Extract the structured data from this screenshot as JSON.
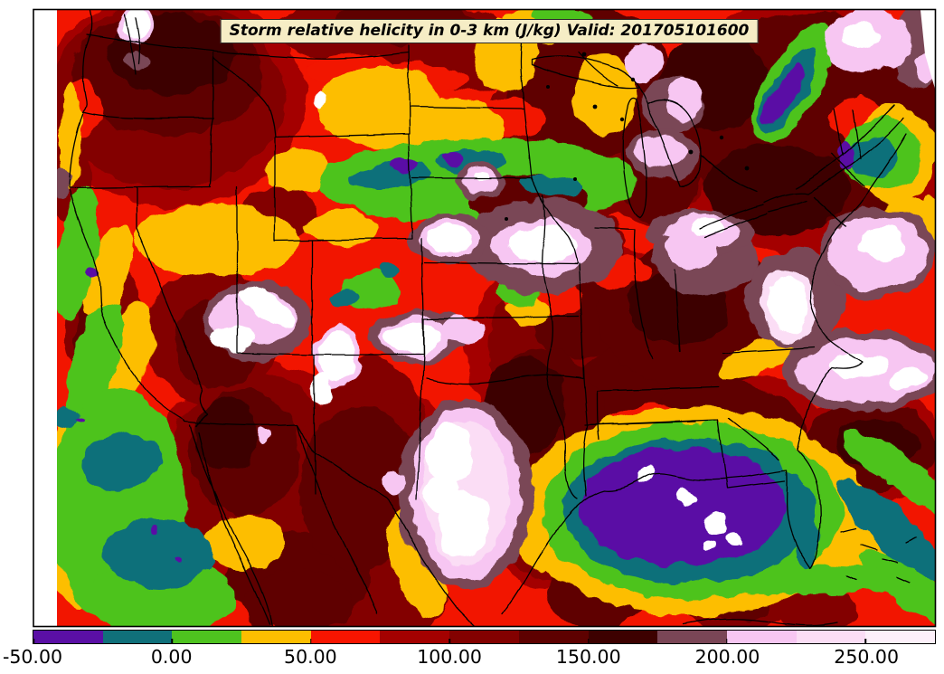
{
  "figure": {
    "title": "Storm relative helicity in 0-3 km (J/kg) Valid: 201705101600",
    "field_name": "Storm relative helicity in 0-3 km",
    "units": "J/kg",
    "valid_time": "201705101600"
  },
  "colorbar": {
    "range_min": -50,
    "range_max": 275,
    "bin_width": 25,
    "ticks": [
      {
        "value": -50,
        "label": "-50.00"
      },
      {
        "value": 0,
        "label": "0.00"
      },
      {
        "value": 50,
        "label": "50.00"
      },
      {
        "value": 100,
        "label": "100.00"
      },
      {
        "value": 150,
        "label": "150.00"
      },
      {
        "value": 200,
        "label": "200.00"
      },
      {
        "value": 250,
        "label": "250.00"
      }
    ],
    "bins": [
      {
        "from": -50,
        "to": -25,
        "color": "#5a0fa5"
      },
      {
        "from": -25,
        "to": 0,
        "color": "#10707a"
      },
      {
        "from": 0,
        "to": 25,
        "color": "#4ec31f"
      },
      {
        "from": 25,
        "to": 50,
        "color": "#fdbe00"
      },
      {
        "from": 50,
        "to": 75,
        "color": "#f81500"
      },
      {
        "from": 75,
        "to": 100,
        "color": "#a40100"
      },
      {
        "from": 100,
        "to": 125,
        "color": "#830100"
      },
      {
        "from": 125,
        "to": 150,
        "color": "#5e0100"
      },
      {
        "from": 150,
        "to": 175,
        "color": "#3d0100"
      },
      {
        "from": 175,
        "to": 200,
        "color": "#7a4656"
      },
      {
        "from": 200,
        "to": 225,
        "color": "#f7c6f2"
      },
      {
        "from": 225,
        "to": 250,
        "color": "#fbddf5"
      },
      {
        "from": 250,
        "to": 275,
        "color": "#fdf0fa"
      }
    ]
  },
  "chart_data": {
    "type": "heatmap",
    "subtype": "filled-contour-weather-map",
    "title": "Storm relative helicity in 0-3 km (J/kg) Valid: 201705101600",
    "region": "Contiguous United States with state borders",
    "colorbar_levels": [
      -50,
      -25,
      0,
      25,
      50,
      75,
      100,
      125,
      150,
      175,
      200,
      225,
      250,
      275
    ],
    "colorbar_tick_labels": [
      "-50.00",
      "0.00",
      "50.00",
      "100.00",
      "150.00",
      "200.00",
      "250.00"
    ],
    "legend_position": "bottom"
  }
}
